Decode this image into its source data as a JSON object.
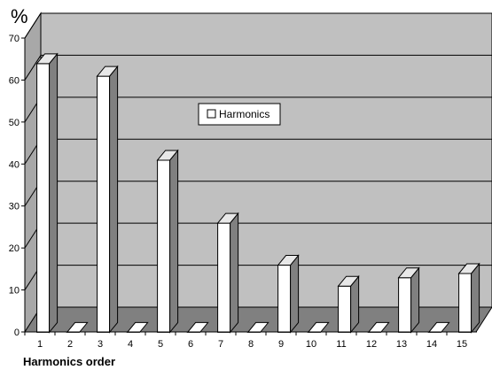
{
  "chart_data": {
    "type": "bar",
    "title": "",
    "unit_label": "%",
    "xlabel": "Harmonics order",
    "ylabel": "",
    "categories": [
      "1",
      "2",
      "3",
      "4",
      "5",
      "6",
      "7",
      "8",
      "9",
      "10",
      "11",
      "12",
      "13",
      "14",
      "15"
    ],
    "series": [
      {
        "name": "Harmonics",
        "values": [
          64,
          0,
          61,
          0,
          41,
          0,
          26,
          0,
          16,
          0,
          11,
          0,
          13,
          0,
          14
        ]
      }
    ],
    "ylim": [
      0,
      70
    ],
    "yticks": [
      0,
      10,
      20,
      30,
      40,
      50,
      60,
      70
    ],
    "grid": true,
    "three_d": true,
    "legend_position": "center",
    "colors": {
      "back_wall": "#c0c0c0",
      "side_wall": "#a8a8a8",
      "floor": "#808080",
      "bar_front": "#ffffff",
      "bar_side": "#808080",
      "bar_top": "#e8e8e8"
    }
  }
}
